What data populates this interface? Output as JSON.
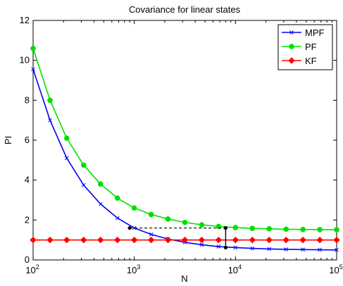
{
  "chart_data": {
    "type": "line",
    "title": "Covariance for linear states",
    "xlabel": "N",
    "ylabel": "PI",
    "xscale": "log",
    "xlim": [
      100,
      100000
    ],
    "ylim": [
      0,
      12
    ],
    "xticks": [
      100,
      1000,
      10000,
      100000
    ],
    "xtick_labels": [
      {
        "base": "10",
        "exp": "2"
      },
      {
        "base": "10",
        "exp": "3"
      },
      {
        "base": "10",
        "exp": "4"
      },
      {
        "base": "10",
        "exp": "5"
      }
    ],
    "yticks": [
      0,
      2,
      4,
      6,
      8,
      10,
      12
    ],
    "ytick_labels": [
      "0",
      "2",
      "4",
      "6",
      "8",
      "10",
      "12"
    ],
    "grid": false,
    "legend_position": "top-right",
    "series": [
      {
        "name": "MPF",
        "color": "#0000ff",
        "marker": "x",
        "x": [
          100,
          147,
          215,
          316,
          464,
          681,
          1000,
          1468,
          2154,
          3162,
          4642,
          6813,
          10000,
          14678,
          21544,
          31623,
          46416,
          68129,
          100000
        ],
        "y": [
          9.55,
          7.0,
          5.1,
          3.75,
          2.8,
          2.1,
          1.6,
          1.28,
          1.05,
          0.88,
          0.76,
          0.67,
          0.62,
          0.58,
          0.55,
          0.53,
          0.52,
          0.51,
          0.5
        ]
      },
      {
        "name": "PF",
        "color": "#00e000",
        "marker": "o",
        "x": [
          100,
          147,
          215,
          316,
          464,
          681,
          1000,
          1468,
          2154,
          3162,
          4642,
          6813,
          10000,
          14678,
          21544,
          31623,
          46416,
          68129,
          100000
        ],
        "y": [
          10.6,
          8.0,
          6.1,
          4.75,
          3.8,
          3.1,
          2.6,
          2.28,
          2.05,
          1.88,
          1.76,
          1.68,
          1.62,
          1.58,
          1.56,
          1.54,
          1.53,
          1.52,
          1.51
        ]
      },
      {
        "name": "KF",
        "color": "#ff0000",
        "marker": "diamond",
        "x": [
          100,
          147,
          215,
          316,
          464,
          681,
          1000,
          1468,
          2154,
          3162,
          4642,
          6813,
          10000,
          14678,
          21544,
          31623,
          46416,
          68129,
          100000
        ],
        "y": [
          1.0,
          1.0,
          1.0,
          1.0,
          1.0,
          1.0,
          1.0,
          1.0,
          1.0,
          1.0,
          1.0,
          1.0,
          1.0,
          1.0,
          1.0,
          1.0,
          1.0,
          1.0,
          1.0
        ]
      }
    ],
    "annotations": {
      "dashed_line": {
        "x": [
          900,
          8000
        ],
        "y": [
          1.6,
          1.6
        ],
        "color": "#000000"
      },
      "vertical_line": {
        "x": [
          8000,
          8000
        ],
        "y": [
          0.62,
          1.6
        ],
        "color": "#000000"
      },
      "points": [
        {
          "x": 900,
          "y": 1.6
        },
        {
          "x": 8000,
          "y": 1.6
        },
        {
          "x": 8000,
          "y": 0.62
        }
      ]
    }
  }
}
